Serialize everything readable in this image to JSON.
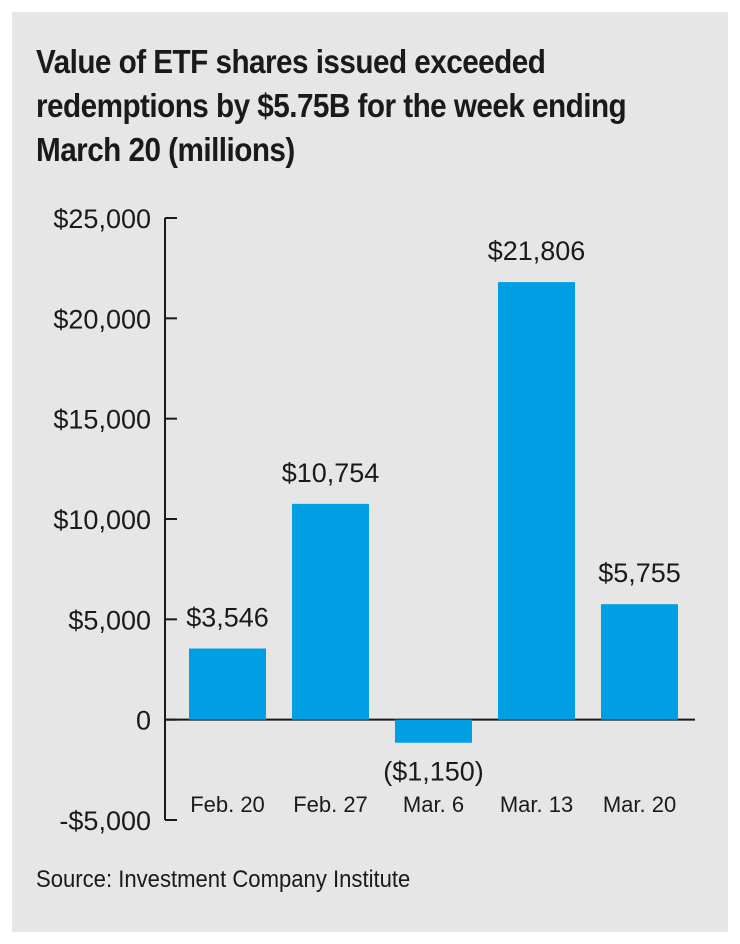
{
  "chart_data": {
    "type": "bar",
    "title": "Value of ETF shares issued exceeded redemptions by $5.75B for the week ending March 20 (millions)",
    "categories": [
      "Feb. 20",
      "Feb. 27",
      "Mar. 6",
      "Mar. 13",
      "Mar. 20"
    ],
    "values": [
      3546,
      10754,
      -1150,
      21806,
      5755
    ],
    "value_labels": [
      "$3,546",
      "$10,754",
      "($1,150)",
      "$21,806",
      "$5,755"
    ],
    "yticks": [
      25000,
      20000,
      15000,
      10000,
      5000,
      0,
      -5000
    ],
    "ytick_labels": [
      "$25,000",
      "$20,000",
      "$15,000",
      "$10,000",
      "$5,000",
      "0",
      "-$5,000"
    ],
    "ylim": [
      -5000,
      25000
    ],
    "xlabel": "",
    "ylabel": "",
    "bar_color": "#009fe3",
    "source": "Source: Investment Company Institute"
  }
}
